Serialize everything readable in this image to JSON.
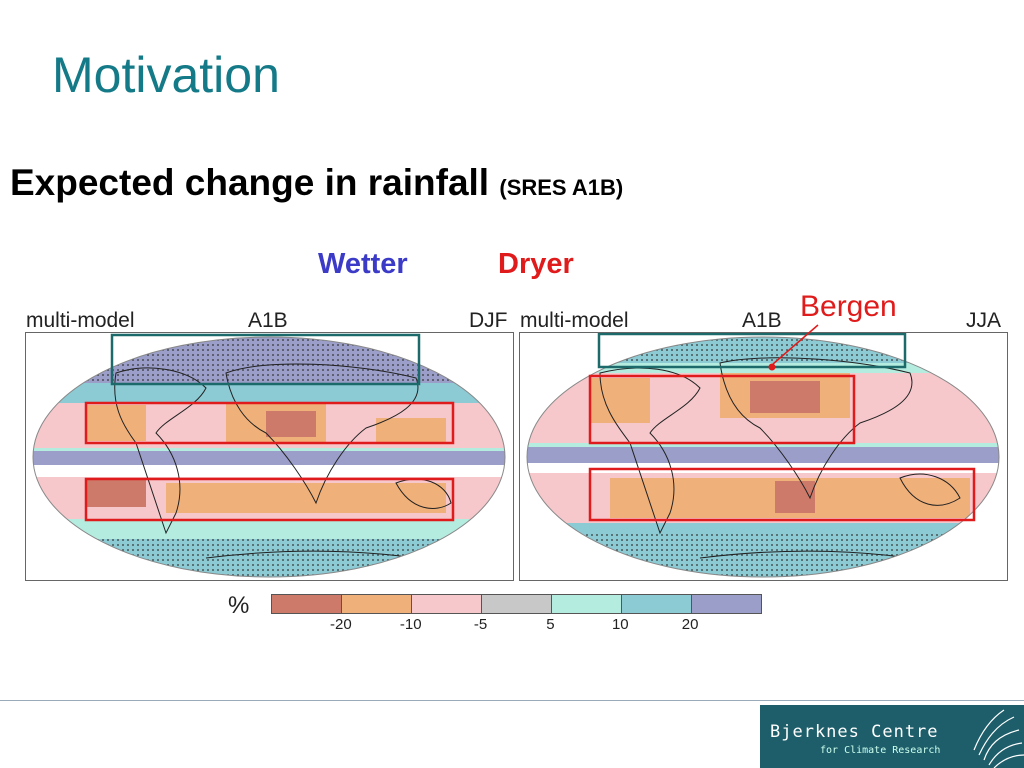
{
  "slide": {
    "title": "Motivation",
    "subtitle_main": "Expected change in rainfall",
    "subtitle_small": "(SRES A1B)",
    "wetter_label": "Wetter",
    "dryer_label": "Dryer",
    "bergen_label": "Bergen"
  },
  "maps": [
    {
      "left_label": "multi-model",
      "center_label": "A1B",
      "right_label": "DJF"
    },
    {
      "left_label": "multi-model",
      "center_label": "A1B",
      "right_label": "JJA"
    }
  ],
  "legend": {
    "unit": "%",
    "ticks": [
      "-20",
      "-10",
      "-5",
      "5",
      "10",
      "20"
    ],
    "colors": [
      "#cd7a6a",
      "#f0b07a",
      "#f6c8cc",
      "#c8c8c8",
      "#b4ede0",
      "#8ccad4",
      "#9a9ec8"
    ]
  },
  "footer": {
    "org_name": "Bjerknes Centre",
    "org_sub": "for Climate Research"
  },
  "colors": {
    "title": "#147a87",
    "wetter": "#3b3bc8",
    "dryer": "#e01b1b",
    "box_dry": "#e01b1b",
    "box_wet": "#1d6a6a"
  }
}
